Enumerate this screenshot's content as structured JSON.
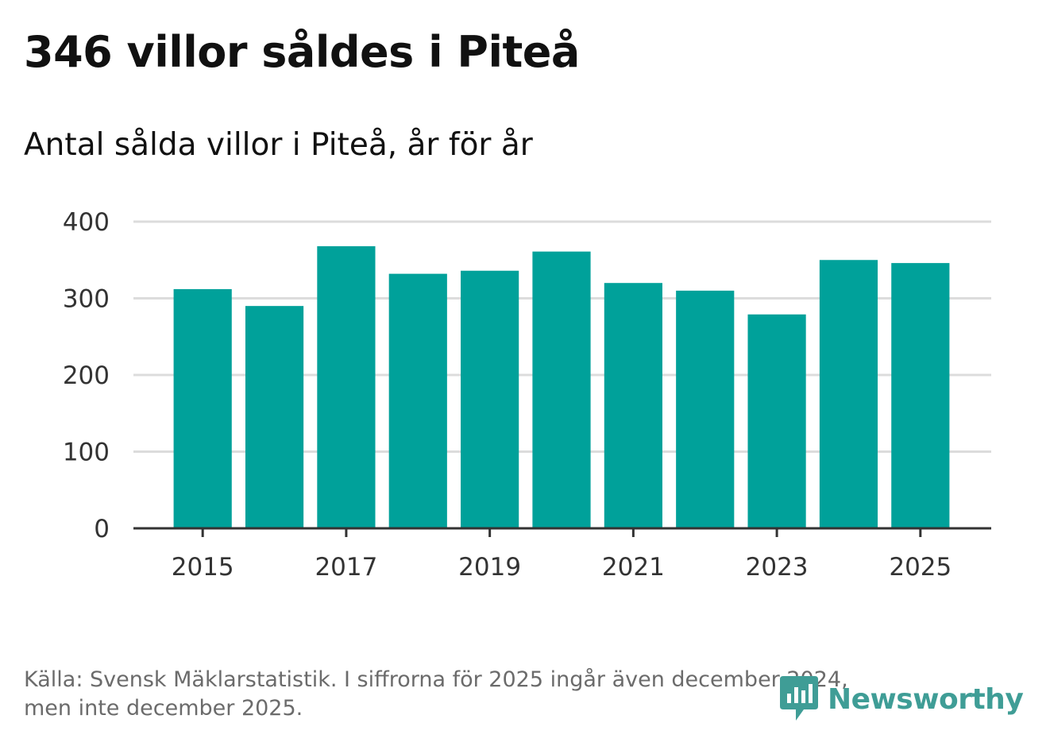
{
  "header": {
    "title": "346 villor såldes i Piteå",
    "subtitle": "Antal sålda villor i Piteå, år för år"
  },
  "chart_data": {
    "type": "bar",
    "title": "346 villor såldes i Piteå",
    "subtitle": "Antal sålda villor i Piteå, år för år",
    "categories": [
      "2015",
      "2016",
      "2017",
      "2018",
      "2019",
      "2020",
      "2021",
      "2022",
      "2023",
      "2024",
      "2025"
    ],
    "values": [
      312,
      290,
      368,
      332,
      336,
      361,
      320,
      310,
      279,
      350,
      346
    ],
    "x_tick_labels": [
      "2015",
      "2017",
      "2019",
      "2021",
      "2023",
      "2025"
    ],
    "y_ticks": [
      0,
      100,
      200,
      300,
      400
    ],
    "ylim": [
      0,
      400
    ],
    "xlabel": "",
    "ylabel": "",
    "grid": true,
    "bar_color": "#00a19a"
  },
  "footer": {
    "source_line1": "Källa: Svensk Mäklarstatistik. I siffrorna för 2025 ingår även december 2024,",
    "source_line2": "men inte december 2025."
  },
  "brand": {
    "name": "Newsworthy",
    "logo_icon": "newsworthy-logo-icon",
    "color": "#3f9d96"
  }
}
